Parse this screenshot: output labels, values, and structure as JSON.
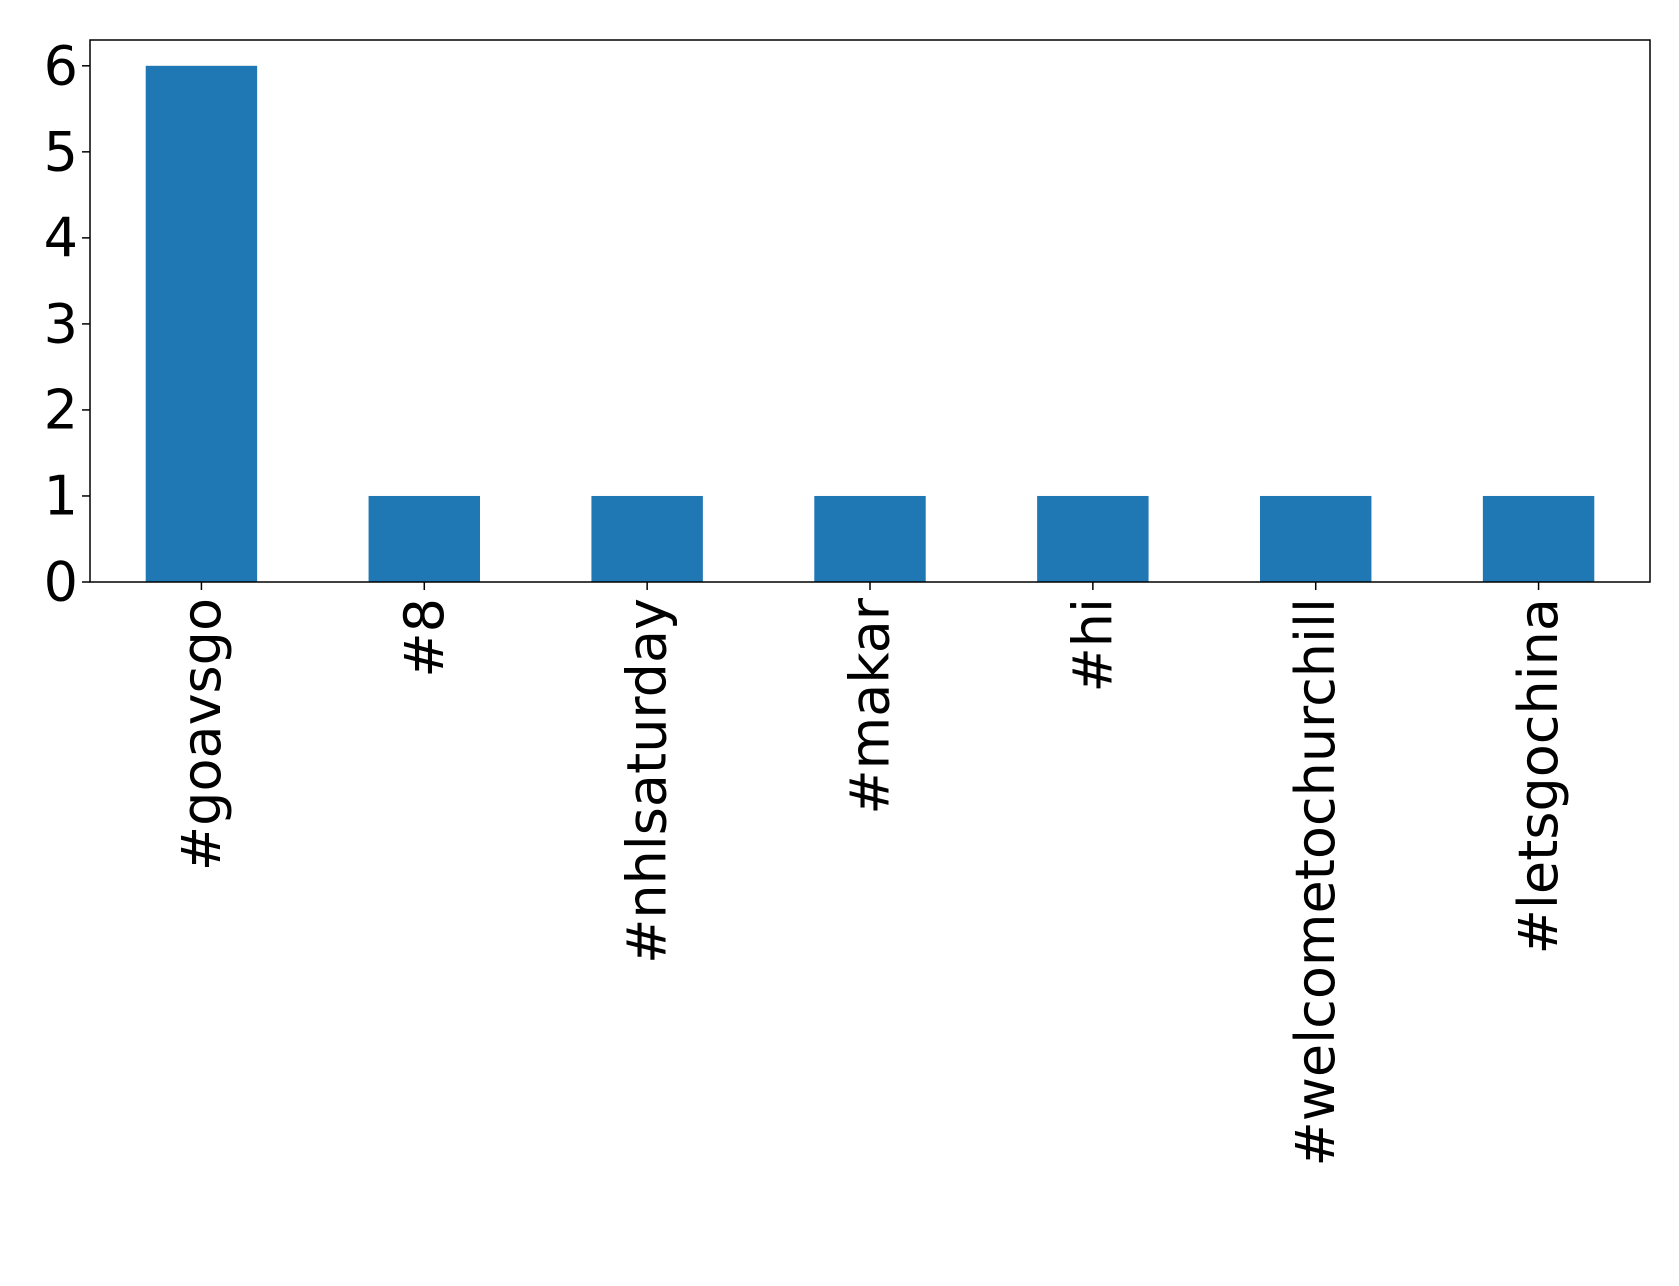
{
  "chart_data": {
    "type": "bar",
    "categories": [
      "#goavsgo",
      "#8",
      "#nhlsaturday",
      "#makar",
      "#hi",
      "#welcometochurchill",
      "#letsgochina"
    ],
    "values": [
      6,
      1,
      1,
      1,
      1,
      1,
      1
    ],
    "ylim": [
      0,
      6.3
    ],
    "yticks": [
      0,
      1,
      2,
      3,
      4,
      5,
      6
    ],
    "bar_color": "#1f77b4",
    "grid": false,
    "legend": false,
    "xtick_rotation": 90
  }
}
